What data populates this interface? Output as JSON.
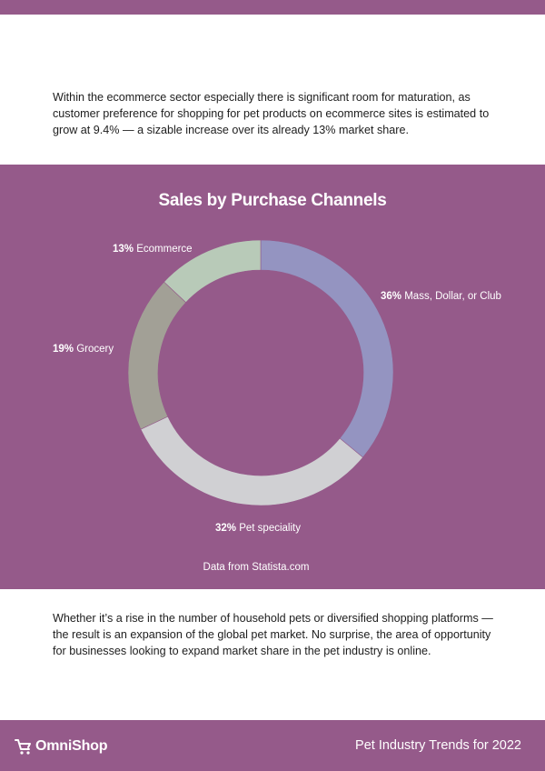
{
  "intro_paragraph": "Within the ecommerce sector especially there is significant room for maturation, as customer preference for shopping for pet products on ecommerce sites is estimated to grow at 9.4% — a sizable increase over its already 13% market share.",
  "chart_data": {
    "type": "pie",
    "style": "donut",
    "title": "Sales by Purchase Channels",
    "slices": [
      {
        "label": "Mass, Dollar, or Club",
        "percent_label": "36%",
        "value": 36,
        "color": "#9494c1"
      },
      {
        "label": "Pet speciality",
        "percent_label": "32%",
        "value": 32,
        "color": "#d0d0d3"
      },
      {
        "label": "Grocery",
        "percent_label": "19%",
        "value": 19,
        "color": "#a2a096"
      },
      {
        "label": "Ecommerce",
        "percent_label": "13%",
        "value": 13,
        "color": "#b8cab8"
      }
    ],
    "legend": "none",
    "source": "Data from Statista.com"
  },
  "outro_paragraph": "Whether it’s a rise in the number of household pets or diversified shopping platforms — the result is an expansion of the global pet market. No surprise,  the area of opportunity for businesses looking to expand market share in the pet industry is online.",
  "footer": {
    "brand": "OmniShop",
    "logo_icon": "shopping-cart-icon",
    "report_title": "Pet Industry Trends for 2022"
  },
  "colors": {
    "accent": "#955a8a",
    "text": "#1d1d1d"
  }
}
